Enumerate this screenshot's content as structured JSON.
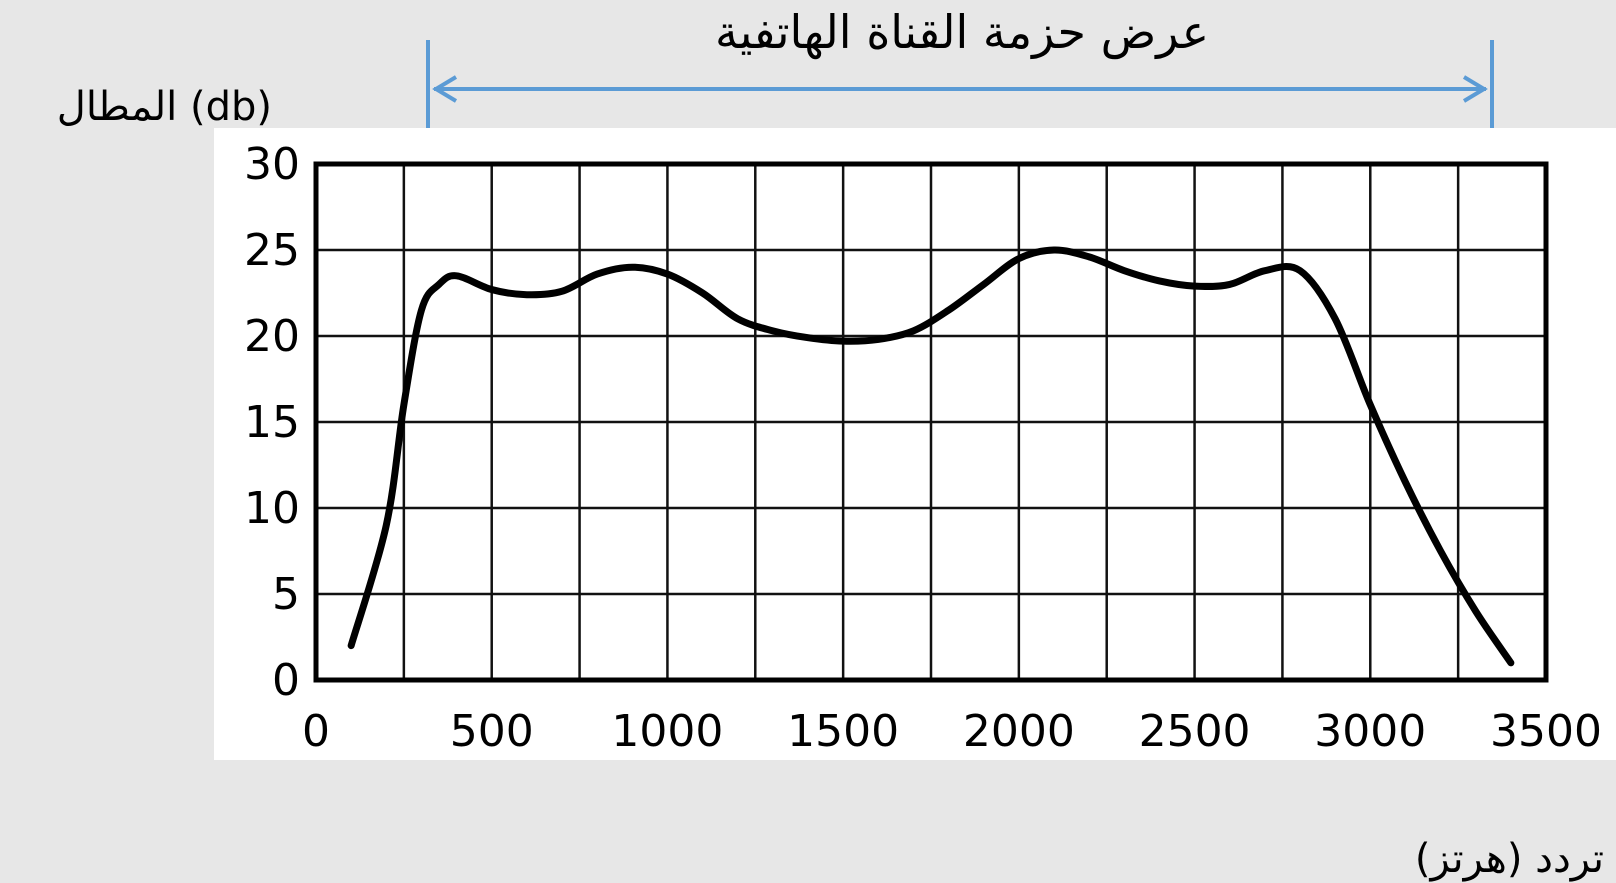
{
  "chart_data": {
    "type": "line",
    "annotation": {
      "text": "عرض حزمة القناة الهاتفية",
      "from_x": 300,
      "to_x": 3400,
      "color": "#5b9bd5"
    },
    "ylabel": "المطال (db)",
    "xlabel": "تردد (هرتز)",
    "xlim": [
      0,
      3500
    ],
    "ylim": [
      0,
      30
    ],
    "x_ticks": [
      0,
      500,
      1000,
      1500,
      2000,
      2500,
      3000,
      3500
    ],
    "y_ticks": [
      0,
      5,
      10,
      15,
      20,
      25,
      30
    ],
    "grid": true,
    "grid_x_step": 250,
    "grid_y_step": 5,
    "series": [
      {
        "x": [
          100,
          200,
          250,
          300,
          350,
          400,
          500,
          600,
          700,
          800,
          900,
          1000,
          1100,
          1200,
          1300,
          1400,
          1500,
          1600,
          1700,
          1800,
          1900,
          2000,
          2100,
          2200,
          2300,
          2400,
          2500,
          2600,
          2700,
          2800,
          2900,
          3000,
          3100,
          3200,
          3300,
          3400
        ],
        "y": [
          2,
          9,
          16,
          21.5,
          23,
          23.5,
          22.7,
          22.4,
          22.6,
          23.6,
          24,
          23.6,
          22.5,
          21,
          20.3,
          19.9,
          19.7,
          19.8,
          20.3,
          21.5,
          23,
          24.5,
          25,
          24.6,
          23.8,
          23.2,
          22.9,
          23,
          23.8,
          23.8,
          21,
          16,
          11.5,
          7.5,
          4,
          1
        ]
      }
    ]
  }
}
